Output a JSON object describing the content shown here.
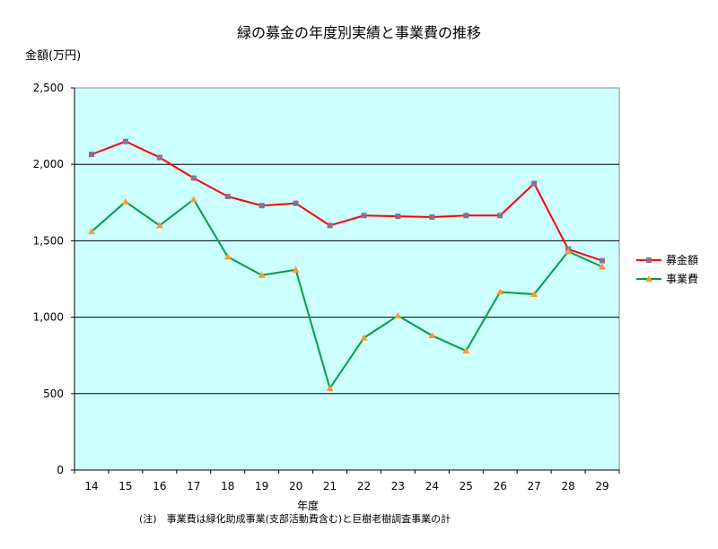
{
  "chart_data": {
    "type": "line",
    "title": "緑の募金の年度別実績と事業費の推移",
    "ylabel": "金額(万円)",
    "xlabel": "年度",
    "note": "(注)　事業費は緑化助成事業(支部活動費含む)と巨樹老樹調査事業の計",
    "categories": [
      "14",
      "15",
      "16",
      "17",
      "18",
      "19",
      "20",
      "21",
      "22",
      "23",
      "24",
      "25",
      "26",
      "27",
      "28",
      "29"
    ],
    "ylim": [
      0,
      2500
    ],
    "yticks": [
      0,
      500,
      1000,
      1500,
      2000,
      2500
    ],
    "ytick_labels": [
      "0",
      "500",
      "1,000",
      "1,500",
      "2,000",
      "2,500"
    ],
    "grid": true,
    "legend_position": "right",
    "plot_background": "#ccffff",
    "series": [
      {
        "name": "募金額",
        "color": "#ff0000",
        "marker": "square",
        "marker_color": "#8c6e8c",
        "values": [
          2065,
          2150,
          2045,
          1910,
          1790,
          1730,
          1745,
          1600,
          1665,
          1660,
          1655,
          1665,
          1665,
          1875,
          1445,
          1370
        ]
      },
      {
        "name": "事業費",
        "color": "#00a03c",
        "marker": "triangle",
        "marker_color": "#ff9933",
        "values": [
          1560,
          1755,
          1600,
          1770,
          1395,
          1275,
          1310,
          535,
          865,
          1010,
          880,
          780,
          1165,
          1150,
          1430,
          1330
        ]
      }
    ]
  }
}
